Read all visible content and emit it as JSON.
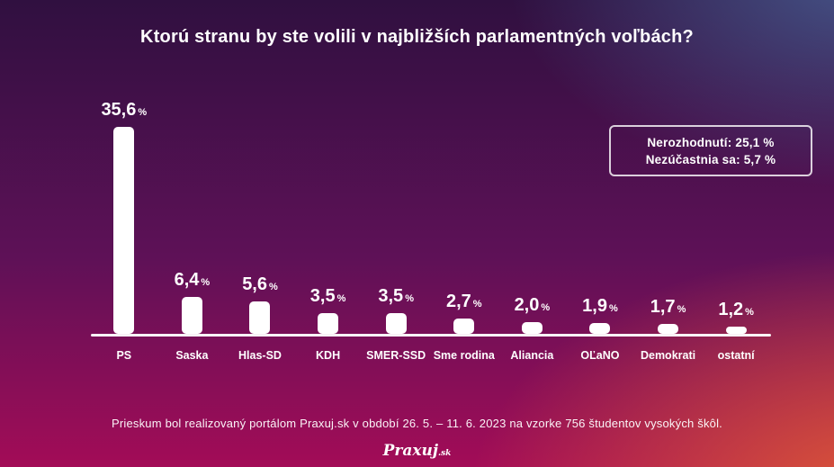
{
  "title": "Ktorú stranu by ste volili v najbližších parlamentných voľbách?",
  "legend": {
    "line1": "Nerozhodnutí: 25,1 %",
    "line2": "Nezúčastnia sa: 5,7 %"
  },
  "chart_data": {
    "type": "bar",
    "title": "Ktorú stranu by ste volili v najbližších parlamentných voľbách?",
    "categories": [
      "PS",
      "Saska",
      "Hlas-SD",
      "KDH",
      "SMER-SSD",
      "Sme rodina",
      "Aliancia",
      "OĽaNO",
      "Demokrati",
      "ostatní"
    ],
    "values": [
      35.6,
      6.4,
      5.6,
      3.5,
      3.5,
      2.7,
      2.0,
      1.9,
      1.7,
      1.2
    ],
    "value_labels": [
      "35,6",
      "6,4",
      "5,6",
      "3,5",
      "3,5",
      "2,7",
      "2,0",
      "1,9",
      "1,7",
      "1,2"
    ],
    "unit": "%",
    "ylim": [
      0,
      36
    ],
    "grid": false,
    "legend_position": "top-right",
    "annotations": [
      "Nerozhodnutí: 25,1 %",
      "Nezúčastnia sa: 5,7 %"
    ],
    "bar_color": "#ffffff"
  },
  "footer": {
    "source": "Prieskum bol realizovaný portálom Praxuj.sk v období 26. 5. – 11. 6. 2023 na vzorke 756 študentov vysokých škôl.",
    "logo": "Praxuj",
    "logo_suffix": ".sk"
  },
  "colors": {
    "background_top_left": "#2e0d3e",
    "background_top_right": "#46578b",
    "background_bottom_left": "#9c0a56",
    "background_bottom_right": "#d85a38",
    "bar": "#ffffff",
    "text": "#ffffff"
  }
}
